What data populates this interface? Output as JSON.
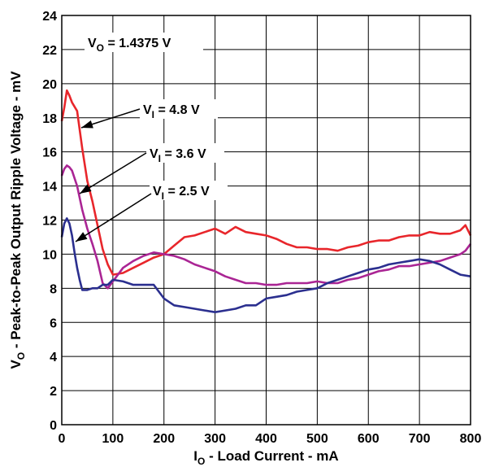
{
  "chart_data": {
    "type": "line",
    "xlabel": {
      "main": "I",
      "sub": "O",
      "rest": " - Load Current - mA"
    },
    "ylabel": {
      "main": "V",
      "sub": "O",
      "rest": " - Peak-to-Peak Output Ripple Voltage - mV"
    },
    "xlim": [
      0,
      800
    ],
    "ylim": [
      0,
      24
    ],
    "x_ticks": [
      0,
      100,
      200,
      300,
      400,
      500,
      600,
      700,
      800
    ],
    "y_ticks": [
      0,
      2,
      4,
      6,
      8,
      10,
      12,
      14,
      16,
      18,
      20,
      22,
      24
    ],
    "grid": true,
    "annotations": [
      {
        "main": "V",
        "sub": "O",
        "rest": " = 1.4375 V"
      },
      {
        "main": "V",
        "sub": "I",
        "rest": " = 4.8 V"
      },
      {
        "main": "V",
        "sub": "I",
        "rest": " = 3.6 V"
      },
      {
        "main": "V",
        "sub": "I",
        "rest": " = 2.5 V"
      }
    ],
    "series": [
      {
        "color": "#e8262b",
        "x": [
          0,
          5,
          10,
          15,
          20,
          30,
          40,
          50,
          60,
          70,
          80,
          90,
          100,
          120,
          140,
          160,
          180,
          200,
          220,
          240,
          260,
          280,
          300,
          320,
          340,
          360,
          380,
          400,
          420,
          440,
          460,
          480,
          500,
          520,
          540,
          560,
          580,
          600,
          620,
          640,
          660,
          680,
          700,
          720,
          740,
          760,
          780,
          790,
          800
        ],
        "y": [
          17.8,
          18.6,
          19.6,
          19.3,
          18.9,
          18.4,
          16.2,
          14.3,
          13.1,
          11.7,
          10.3,
          9.4,
          8.8,
          8.9,
          9.2,
          9.5,
          9.8,
          10.0,
          10.5,
          11.0,
          11.1,
          11.3,
          11.5,
          11.2,
          11.6,
          11.3,
          11.2,
          11.1,
          10.9,
          10.6,
          10.4,
          10.4,
          10.3,
          10.3,
          10.2,
          10.4,
          10.5,
          10.7,
          10.8,
          10.8,
          11.0,
          11.1,
          11.1,
          11.3,
          11.2,
          11.2,
          11.4,
          11.7,
          11.1
        ]
      },
      {
        "color": "#aa2594",
        "x": [
          0,
          5,
          10,
          15,
          20,
          30,
          40,
          50,
          60,
          70,
          80,
          90,
          100,
          120,
          140,
          160,
          180,
          200,
          220,
          240,
          260,
          280,
          300,
          320,
          340,
          360,
          380,
          400,
          420,
          440,
          460,
          480,
          500,
          520,
          540,
          560,
          580,
          600,
          620,
          640,
          660,
          680,
          700,
          720,
          740,
          760,
          780,
          790,
          800
        ],
        "y": [
          14.6,
          15.0,
          15.2,
          15.1,
          14.9,
          14.0,
          12.6,
          11.5,
          10.6,
          9.6,
          8.3,
          8.0,
          8.4,
          9.2,
          9.6,
          9.9,
          10.1,
          10.0,
          9.9,
          9.7,
          9.4,
          9.2,
          9.0,
          8.7,
          8.5,
          8.3,
          8.3,
          8.2,
          8.2,
          8.3,
          8.3,
          8.3,
          8.4,
          8.3,
          8.3,
          8.5,
          8.6,
          8.8,
          9.0,
          9.1,
          9.3,
          9.3,
          9.4,
          9.5,
          9.6,
          9.8,
          10.0,
          10.2,
          10.6
        ]
      },
      {
        "color": "#2b2f8f",
        "x": [
          0,
          5,
          10,
          15,
          20,
          25,
          30,
          35,
          40,
          50,
          60,
          70,
          80,
          90,
          100,
          120,
          140,
          160,
          180,
          200,
          220,
          240,
          260,
          280,
          300,
          320,
          340,
          360,
          380,
          400,
          420,
          440,
          460,
          480,
          500,
          520,
          540,
          560,
          580,
          600,
          620,
          640,
          660,
          680,
          700,
          720,
          740,
          760,
          780,
          800
        ],
        "y": [
          11.0,
          11.8,
          12.1,
          11.8,
          11.1,
          10.1,
          9.2,
          8.5,
          7.9,
          7.9,
          8.0,
          8.0,
          8.2,
          8.2,
          8.5,
          8.4,
          8.2,
          8.2,
          8.2,
          7.4,
          7.0,
          6.9,
          6.8,
          6.7,
          6.6,
          6.7,
          6.8,
          7.0,
          7.0,
          7.4,
          7.5,
          7.6,
          7.8,
          7.9,
          8.0,
          8.3,
          8.5,
          8.7,
          8.9,
          9.1,
          9.2,
          9.4,
          9.5,
          9.6,
          9.7,
          9.6,
          9.4,
          9.1,
          8.8,
          8.7
        ]
      }
    ]
  }
}
